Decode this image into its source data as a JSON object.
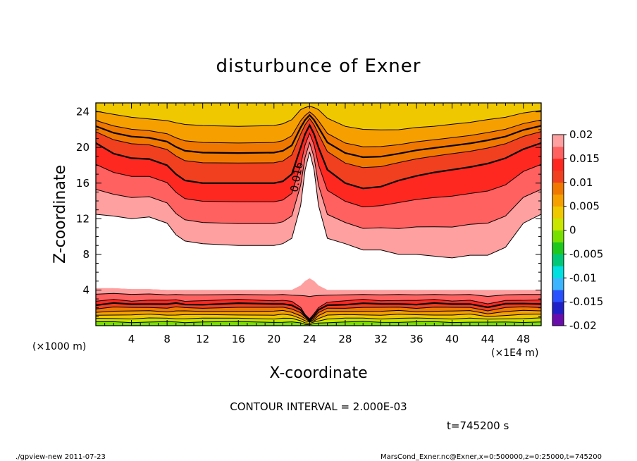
{
  "chart_data": {
    "type": "heatmap",
    "title": "disturbunce of Exner",
    "xlabel": "X-coordinate",
    "ylabel": "Z-coordinate",
    "x_unit_left": "(×1000 m)",
    "x_unit_right": "(×1E4 m)",
    "xlim": [
      0,
      50
    ],
    "ylim": [
      0,
      25
    ],
    "xticks": [
      "4",
      "8",
      "12",
      "16",
      "20",
      "24",
      "28",
      "32",
      "36",
      "40",
      "44",
      "48"
    ],
    "yticks": [
      "4",
      "8",
      "12",
      "16",
      "20",
      "24"
    ],
    "contour_interval_text": "CONTOUR INTERVAL = 2.000E-03",
    "contour_label": "0.016",
    "contour_label_position": {
      "x": 22.6,
      "y": 18.4
    },
    "colorbar": {
      "ticks": [
        "0.02",
        "0.015",
        "0.01",
        "0.005",
        "0",
        "-0.005",
        "-0.01",
        "-0.015",
        "-0.02"
      ],
      "range": [
        -0.02,
        0.02
      ],
      "step": 0.0025,
      "colors": [
        "#6a0dad",
        "#2020c8",
        "#2850ff",
        "#3cb4ff",
        "#00e0e0",
        "#00c878",
        "#1ec81e",
        "#78e000",
        "#c8e600",
        "#f0c800",
        "#f5a000",
        "#f07800",
        "#f04020",
        "#ff2820",
        "#ff6060",
        "#ffa0a0"
      ]
    },
    "profiles": {
      "x": [
        0,
        2,
        4,
        6,
        8,
        9,
        10,
        12,
        16,
        20,
        21,
        22,
        23,
        23.5,
        24,
        24.5,
        25,
        26,
        28,
        30,
        32,
        34,
        36,
        38,
        40,
        42,
        44,
        46,
        48,
        50
      ],
      "top": [
        24.7,
        24.5,
        24.2,
        24.0,
        23.9,
        23.8,
        23.7,
        23.6,
        23.5,
        23.6,
        23.8,
        24.2,
        25.0,
        25.0,
        25.0,
        25.0,
        25.0,
        24.3,
        23.5,
        23.2,
        23.1,
        23.0,
        23.2,
        23.3,
        23.5,
        23.7,
        24.0,
        24.2,
        24.6,
        24.8
      ],
      "mid": [
        20.5,
        19.3,
        18.8,
        18.7,
        18.0,
        17.0,
        16.3,
        16.0,
        16.0,
        16.0,
        16.2,
        17.0,
        20.0,
        21.5,
        22.5,
        21.5,
        20.0,
        17.5,
        16.0,
        15.4,
        15.6,
        16.3,
        16.8,
        17.2,
        17.5,
        17.8,
        18.2,
        18.8,
        19.8,
        20.5
      ],
      "white_top": [
        12.5,
        12.3,
        12.0,
        12.2,
        11.5,
        10.2,
        9.5,
        9.2,
        9.0,
        9.0,
        9.2,
        9.8,
        13.5,
        17.5,
        19.5,
        17.5,
        13.5,
        9.8,
        9.2,
        8.5,
        8.5,
        8.0,
        8.0,
        7.8,
        7.6,
        7.9,
        7.9,
        8.8,
        11.5,
        12.5
      ],
      "white_bot": [
        4.2,
        4.2,
        4.1,
        4.1,
        4.0,
        4.0,
        4.0,
        4.0,
        4.0,
        4.0,
        4.0,
        4.0,
        4.5,
        5.0,
        5.3,
        5.0,
        4.5,
        4.0,
        4.0,
        4.0,
        4.0,
        4.0,
        4.0,
        4.0,
        4.0,
        4.0,
        4.0,
        4.0,
        4.0,
        4.0
      ],
      "low": [
        2.7,
        2.9,
        2.8,
        2.9,
        2.8,
        2.9,
        2.8,
        2.8,
        2.9,
        2.8,
        2.9,
        2.7,
        2.0,
        1.3,
        0.8,
        1.3,
        2.0,
        2.7,
        2.8,
        2.9,
        2.8,
        2.9,
        2.8,
        2.9,
        2.8,
        2.9,
        2.4,
        2.8,
        2.9,
        2.9
      ]
    }
  },
  "time_label": "t=745200 s",
  "footer_left": "./gpview-new   2011-07-23",
  "footer_right": "MarsCond_Exner.nc@Exner,x=0:500000,z=0:25000,t=745200"
}
